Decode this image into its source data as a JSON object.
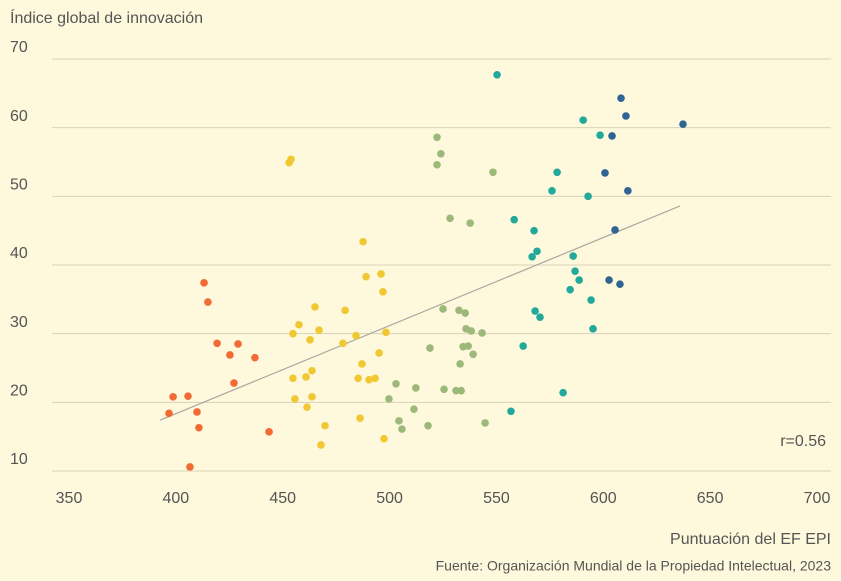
{
  "chart_data": {
    "type": "scatter",
    "title": "Índice global de innovación",
    "xlabel": "Puntuación del EF EPI",
    "source": "Fuente: Organización Mundial de la Propiedad Intelectual, 2023",
    "annotation": "r=0.56",
    "xlim": [
      350,
      700
    ],
    "xticks": [
      350,
      400,
      450,
      500,
      550,
      600,
      650,
      700
    ],
    "ylim": [
      10,
      70
    ],
    "yticks": [
      10,
      20,
      30,
      40,
      50,
      60,
      70
    ],
    "grid": true,
    "trendline": {
      "color": "#a8a8a0",
      "x": [
        392.6,
        635.9
      ],
      "values": [
        17.4,
        48.6
      ]
    },
    "series": [
      {
        "color": "#f26b35",
        "x": [
          396.8,
          398.7,
          405.7,
          406.6,
          409.9,
          410.8,
          413.2,
          415.0,
          419.3,
          425.3,
          427.2,
          429.1,
          437.0,
          443.6
        ],
        "values": [
          18.4,
          20.8,
          20.9,
          10.6,
          18.6,
          16.3,
          37.4,
          34.6,
          28.6,
          26.9,
          22.8,
          28.5,
          26.5,
          15.7
        ]
      },
      {
        "color": "#f0c832",
        "x": [
          453.0,
          453.9,
          454.8,
          457.6,
          454.8,
          455.7,
          460.9,
          461.4,
          462.8,
          463.7,
          463.7,
          465.1,
          467.0,
          467.9,
          469.8,
          478.2,
          479.2,
          484.3,
          485.3,
          486.2,
          487.1,
          487.6,
          489.0,
          490.4,
          493.2,
          495.1,
          496.0,
          496.9,
          498.3,
          497.4
        ],
        "values": [
          54.9,
          55.4,
          30.0,
          31.3,
          23.5,
          20.5,
          23.7,
          19.3,
          29.1,
          24.6,
          20.8,
          33.9,
          30.5,
          13.8,
          16.6,
          28.6,
          33.4,
          29.7,
          23.5,
          17.7,
          25.6,
          43.4,
          38.3,
          23.3,
          23.5,
          27.2,
          38.7,
          36.1,
          30.2,
          14.7
        ]
      },
      {
        "color": "#9db97a",
        "x": [
          499.7,
          503.0,
          504.4,
          505.8,
          511.4,
          512.3,
          518.0,
          518.9,
          522.2,
          524.0,
          522.2,
          525.0,
          525.5,
          528.3,
          531.1,
          532.5,
          533.5,
          533.0,
          534.4,
          535.4,
          535.8,
          536.8,
          538.2,
          537.7,
          539.1,
          543.3,
          544.7,
          548.4
        ],
        "values": [
          20.5,
          22.7,
          17.3,
          16.1,
          19.0,
          22.1,
          16.6,
          27.9,
          58.6,
          56.2,
          54.6,
          33.6,
          21.9,
          46.8,
          21.7,
          33.4,
          21.7,
          25.6,
          28.1,
          33.0,
          30.7,
          28.2,
          30.4,
          46.1,
          27.0,
          30.1,
          17.0,
          53.5
        ]
      },
      {
        "color": "#22a99b",
        "x": [
          550.3,
          556.8,
          558.3,
          562.5,
          566.7,
          567.6,
          568.1,
          569.0,
          570.4,
          576.0,
          578.4,
          581.2,
          584.5,
          585.9,
          586.8,
          588.7,
          590.6,
          592.9,
          594.3,
          595.2,
          598.5
        ],
        "values": [
          67.7,
          18.7,
          46.6,
          28.2,
          41.2,
          45.0,
          33.3,
          42.0,
          32.4,
          50.8,
          53.5,
          21.4,
          36.4,
          41.3,
          39.1,
          37.8,
          61.1,
          50.0,
          34.9,
          30.7,
          58.9
        ]
      },
      {
        "color": "#2f6593",
        "x": [
          600.8,
          602.7,
          604.1,
          605.5,
          608.3,
          607.8,
          610.6,
          611.5,
          637.3
        ],
        "values": [
          53.4,
          37.8,
          58.8,
          45.1,
          64.3,
          37.2,
          61.7,
          50.8,
          60.5
        ]
      }
    ]
  }
}
